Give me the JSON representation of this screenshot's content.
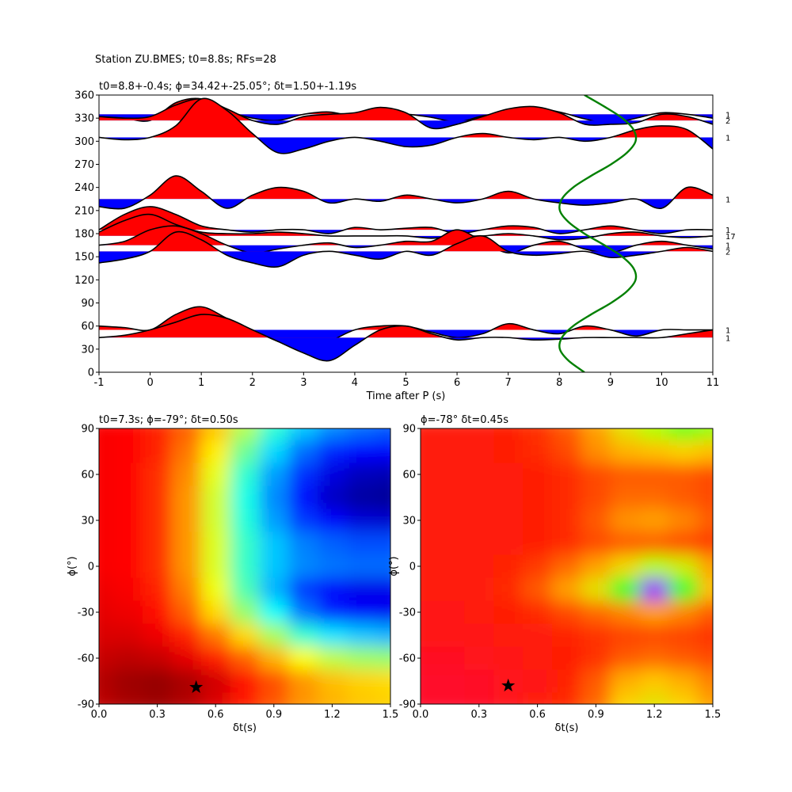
{
  "chart_data": [
    {
      "type": "wiggle",
      "suptitle": "Station ZU.BMES; t0=8.8s; RFs=28",
      "title": "t0=8.8+-0.4s; ϕ=34.42+-25.05°; δt=1.50+-1.19s",
      "xlabel": "Time after P (s)",
      "xlim": [
        -1,
        11
      ],
      "ylim": [
        0,
        360
      ],
      "xticks": [
        -1,
        0,
        1,
        2,
        3,
        4,
        5,
        6,
        7,
        8,
        9,
        10,
        11
      ],
      "yticks": [
        0,
        30,
        60,
        90,
        120,
        150,
        180,
        210,
        240,
        270,
        300,
        330,
        360
      ],
      "pos_color": "#ff0000",
      "neg_color": "#0000ff",
      "line_color": "#000000",
      "x": [
        -1,
        -0.5,
        0,
        0.5,
        1,
        1.5,
        2,
        2.5,
        3,
        3.5,
        4,
        4.5,
        5,
        5.5,
        6,
        6.5,
        7,
        7.5,
        8,
        8.5,
        9,
        9.5,
        10,
        10.5,
        11
      ],
      "series": [
        {
          "label": "1",
          "baseline": 335,
          "values": [
            -3,
            -5,
            -8,
            15,
            20,
            5,
            -5,
            -8,
            0,
            3,
            -3,
            -2,
            0,
            -4,
            -10,
            -2,
            3,
            8,
            3,
            -6,
            -12,
            -5,
            2,
            0,
            -5
          ]
        },
        {
          "label": "2",
          "baseline": 327,
          "values": [
            5,
            3,
            5,
            20,
            28,
            15,
            0,
            -5,
            5,
            8,
            10,
            17,
            10,
            -10,
            -5,
            5,
            15,
            18,
            10,
            -5,
            -5,
            -3,
            8,
            5,
            -5
          ]
        },
        {
          "label": "1",
          "baseline": 305,
          "values": [
            0,
            -3,
            0,
            15,
            50,
            35,
            5,
            -20,
            -15,
            -5,
            0,
            -5,
            -12,
            -10,
            0,
            5,
            0,
            -3,
            0,
            -5,
            0,
            10,
            15,
            10,
            -15
          ]
        },
        {
          "label": "1",
          "baseline": 225,
          "values": [
            -10,
            -12,
            5,
            30,
            10,
            -12,
            5,
            15,
            10,
            -5,
            0,
            -3,
            5,
            0,
            -5,
            0,
            10,
            0,
            -5,
            -8,
            -5,
            0,
            -12,
            15,
            5
          ]
        },
        {
          "label": "1",
          "baseline": 185,
          "values": [
            0,
            20,
            30,
            20,
            5,
            0,
            -3,
            0,
            0,
            -5,
            3,
            0,
            2,
            3,
            -5,
            0,
            5,
            3,
            -5,
            0,
            5,
            0,
            -5,
            0,
            0
          ]
        },
        {
          "label": "17",
          "baseline": 177,
          "values": [
            5,
            20,
            28,
            15,
            5,
            3,
            3,
            5,
            3,
            0,
            0,
            0,
            0,
            -3,
            0,
            0,
            3,
            0,
            -5,
            -3,
            3,
            5,
            0,
            -2,
            0
          ]
        },
        {
          "label": "1",
          "baseline": 165,
          "values": [
            0,
            5,
            20,
            25,
            15,
            0,
            -10,
            -5,
            0,
            3,
            -3,
            0,
            5,
            5,
            20,
            5,
            -10,
            0,
            5,
            -5,
            -10,
            0,
            5,
            0,
            -5
          ]
        },
        {
          "label": "2",
          "baseline": 157,
          "values": [
            -15,
            -10,
            0,
            25,
            15,
            -5,
            -15,
            -20,
            -5,
            0,
            -5,
            -10,
            0,
            -5,
            10,
            20,
            0,
            -5,
            -3,
            0,
            -8,
            -5,
            0,
            5,
            0
          ]
        },
        {
          "label": "1",
          "baseline": 55,
          "values": [
            5,
            3,
            0,
            20,
            30,
            15,
            0,
            -15,
            -25,
            -15,
            0,
            5,
            5,
            -3,
            -10,
            -5,
            8,
            0,
            -5,
            5,
            0,
            -8,
            0,
            0,
            0
          ]
        },
        {
          "label": "1",
          "baseline": 45,
          "values": [
            0,
            3,
            10,
            20,
            30,
            25,
            10,
            -5,
            -20,
            -30,
            -10,
            10,
            15,
            5,
            -3,
            0,
            0,
            -3,
            -2,
            0,
            0,
            0,
            0,
            5,
            10
          ]
        }
      ],
      "curve": {
        "color": "#008000",
        "y": [
          0,
          15,
          30,
          45,
          60,
          75,
          90,
          105,
          120,
          135,
          150,
          165,
          180,
          195,
          210,
          225,
          240,
          255,
          270,
          285,
          300,
          315,
          330,
          345,
          360
        ],
        "x": [
          8.49,
          8.18,
          8.01,
          8.05,
          8.27,
          8.62,
          9.01,
          9.32,
          9.49,
          9.45,
          9.23,
          8.88,
          8.49,
          8.18,
          8.01,
          8.05,
          8.27,
          8.62,
          9.01,
          9.32,
          9.49,
          9.45,
          9.23,
          8.88,
          8.49
        ]
      }
    },
    {
      "type": "heatmap",
      "title": "t0=7.3s; ϕ=-79°; δt=0.50s",
      "xlabel": "δt(s)",
      "ylabel": "ϕ(°)",
      "xlim": [
        0,
        1.5
      ],
      "ylim": [
        -90,
        90
      ],
      "xticks": [
        {
          "value": 0,
          "label": "0.0"
        },
        0.3,
        0.6,
        0.9,
        1.2,
        1.5
      ],
      "yticks": [
        -90,
        -60,
        -30,
        0,
        30,
        60,
        90
      ],
      "colormap": [
        "#800000",
        "#ff0000",
        "#ff8000",
        "#ffff00",
        "#80ff80",
        "#00ffff",
        "#0080ff",
        "#0000ff",
        "#00008f"
      ],
      "dt": [
        0,
        0.15,
        0.3,
        0.45,
        0.6,
        0.75,
        0.9,
        1.05,
        1.2,
        1.35,
        1.5
      ],
      "phi": [
        90,
        75,
        60,
        45,
        30,
        15,
        0,
        -15,
        -30,
        -45,
        -60,
        -75,
        -90
      ],
      "z": [
        [
          0.12,
          0.13,
          0.16,
          0.22,
          0.32,
          0.45,
          0.58,
          0.68,
          0.74,
          0.77,
          0.79
        ],
        [
          0.12,
          0.13,
          0.16,
          0.24,
          0.36,
          0.52,
          0.66,
          0.77,
          0.84,
          0.87,
          0.88
        ],
        [
          0.12,
          0.13,
          0.17,
          0.26,
          0.4,
          0.58,
          0.72,
          0.83,
          0.91,
          0.95,
          0.96
        ],
        [
          0.12,
          0.13,
          0.17,
          0.27,
          0.42,
          0.6,
          0.74,
          0.86,
          0.94,
          0.98,
          0.99
        ],
        [
          0.12,
          0.13,
          0.17,
          0.27,
          0.42,
          0.59,
          0.72,
          0.82,
          0.88,
          0.92,
          0.93
        ],
        [
          0.12,
          0.13,
          0.17,
          0.27,
          0.41,
          0.57,
          0.68,
          0.75,
          0.78,
          0.8,
          0.8
        ],
        [
          0.12,
          0.13,
          0.17,
          0.27,
          0.41,
          0.57,
          0.68,
          0.74,
          0.76,
          0.77,
          0.77
        ],
        [
          0.11,
          0.12,
          0.16,
          0.25,
          0.39,
          0.55,
          0.7,
          0.82,
          0.88,
          0.9,
          0.9
        ],
        [
          0.1,
          0.11,
          0.14,
          0.22,
          0.34,
          0.48,
          0.62,
          0.76,
          0.84,
          0.88,
          0.89
        ],
        [
          0.09,
          0.09,
          0.11,
          0.16,
          0.24,
          0.34,
          0.46,
          0.58,
          0.65,
          0.68,
          0.7
        ],
        [
          0.07,
          0.06,
          0.07,
          0.1,
          0.15,
          0.22,
          0.3,
          0.38,
          0.44,
          0.47,
          0.48
        ],
        [
          0.05,
          0.03,
          0.02,
          0.04,
          0.08,
          0.14,
          0.2,
          0.27,
          0.31,
          0.33,
          0.34
        ],
        [
          0.06,
          0.04,
          0.03,
          0.05,
          0.09,
          0.15,
          0.21,
          0.27,
          0.3,
          0.32,
          0.33
        ]
      ],
      "best": {
        "x": 0.5,
        "y": -79
      }
    },
    {
      "type": "heatmap",
      "title": "ϕ=-78° δt=0.45s",
      "xlabel": "δt(s)",
      "ylabel": "ϕ(°)",
      "xlim": [
        0,
        1.5
      ],
      "ylim": [
        -90,
        90
      ],
      "xticks": [
        {
          "value": 0,
          "label": "0.0"
        },
        0.3,
        0.6,
        0.9,
        1.2,
        1.5
      ],
      "yticks": [
        -90,
        -60,
        -30,
        0,
        30,
        60,
        90
      ],
      "colormap": [
        "#ff0040",
        "#ff2000",
        "#ff8000",
        "#ffd000",
        "#b0ff00",
        "#00ff40",
        "#00ffff",
        "#0040ff",
        "#ff00ff"
      ],
      "dt": [
        0,
        0.15,
        0.3,
        0.45,
        0.6,
        0.75,
        0.9,
        1.05,
        1.2,
        1.35,
        1.5
      ],
      "phi": [
        90,
        75,
        60,
        45,
        30,
        15,
        0,
        -15,
        -30,
        -45,
        -60,
        -75,
        -90
      ],
      "z": [
        [
          0.1,
          0.1,
          0.1,
          0.12,
          0.15,
          0.2,
          0.3,
          0.42,
          0.5,
          0.55,
          0.52
        ],
        [
          0.1,
          0.1,
          0.1,
          0.12,
          0.14,
          0.18,
          0.27,
          0.33,
          0.35,
          0.38,
          0.35
        ],
        [
          0.1,
          0.1,
          0.1,
          0.11,
          0.12,
          0.14,
          0.18,
          0.2,
          0.2,
          0.2,
          0.18
        ],
        [
          0.1,
          0.1,
          0.1,
          0.11,
          0.12,
          0.14,
          0.18,
          0.22,
          0.22,
          0.2,
          0.18
        ],
        [
          0.1,
          0.1,
          0.1,
          0.11,
          0.12,
          0.14,
          0.2,
          0.28,
          0.3,
          0.26,
          0.2
        ],
        [
          0.1,
          0.1,
          0.1,
          0.11,
          0.12,
          0.14,
          0.18,
          0.2,
          0.2,
          0.18,
          0.16
        ],
        [
          0.1,
          0.1,
          0.11,
          0.13,
          0.16,
          0.22,
          0.3,
          0.4,
          0.5,
          0.45,
          0.3
        ],
        [
          0.1,
          0.1,
          0.11,
          0.14,
          0.2,
          0.3,
          0.42,
          0.6,
          0.95,
          0.6,
          0.35
        ],
        [
          0.09,
          0.09,
          0.1,
          0.12,
          0.14,
          0.18,
          0.22,
          0.26,
          0.3,
          0.26,
          0.2
        ],
        [
          0.08,
          0.08,
          0.09,
          0.1,
          0.11,
          0.13,
          0.15,
          0.17,
          0.18,
          0.17,
          0.15
        ],
        [
          0.06,
          0.06,
          0.07,
          0.08,
          0.1,
          0.12,
          0.15,
          0.2,
          0.22,
          0.2,
          0.18
        ],
        [
          0.04,
          0.04,
          0.05,
          0.07,
          0.09,
          0.13,
          0.2,
          0.32,
          0.36,
          0.32,
          0.25
        ],
        [
          0.04,
          0.04,
          0.05,
          0.07,
          0.1,
          0.14,
          0.22,
          0.38,
          0.42,
          0.38,
          0.3
        ]
      ],
      "best": {
        "x": 0.45,
        "y": -78
      }
    }
  ]
}
